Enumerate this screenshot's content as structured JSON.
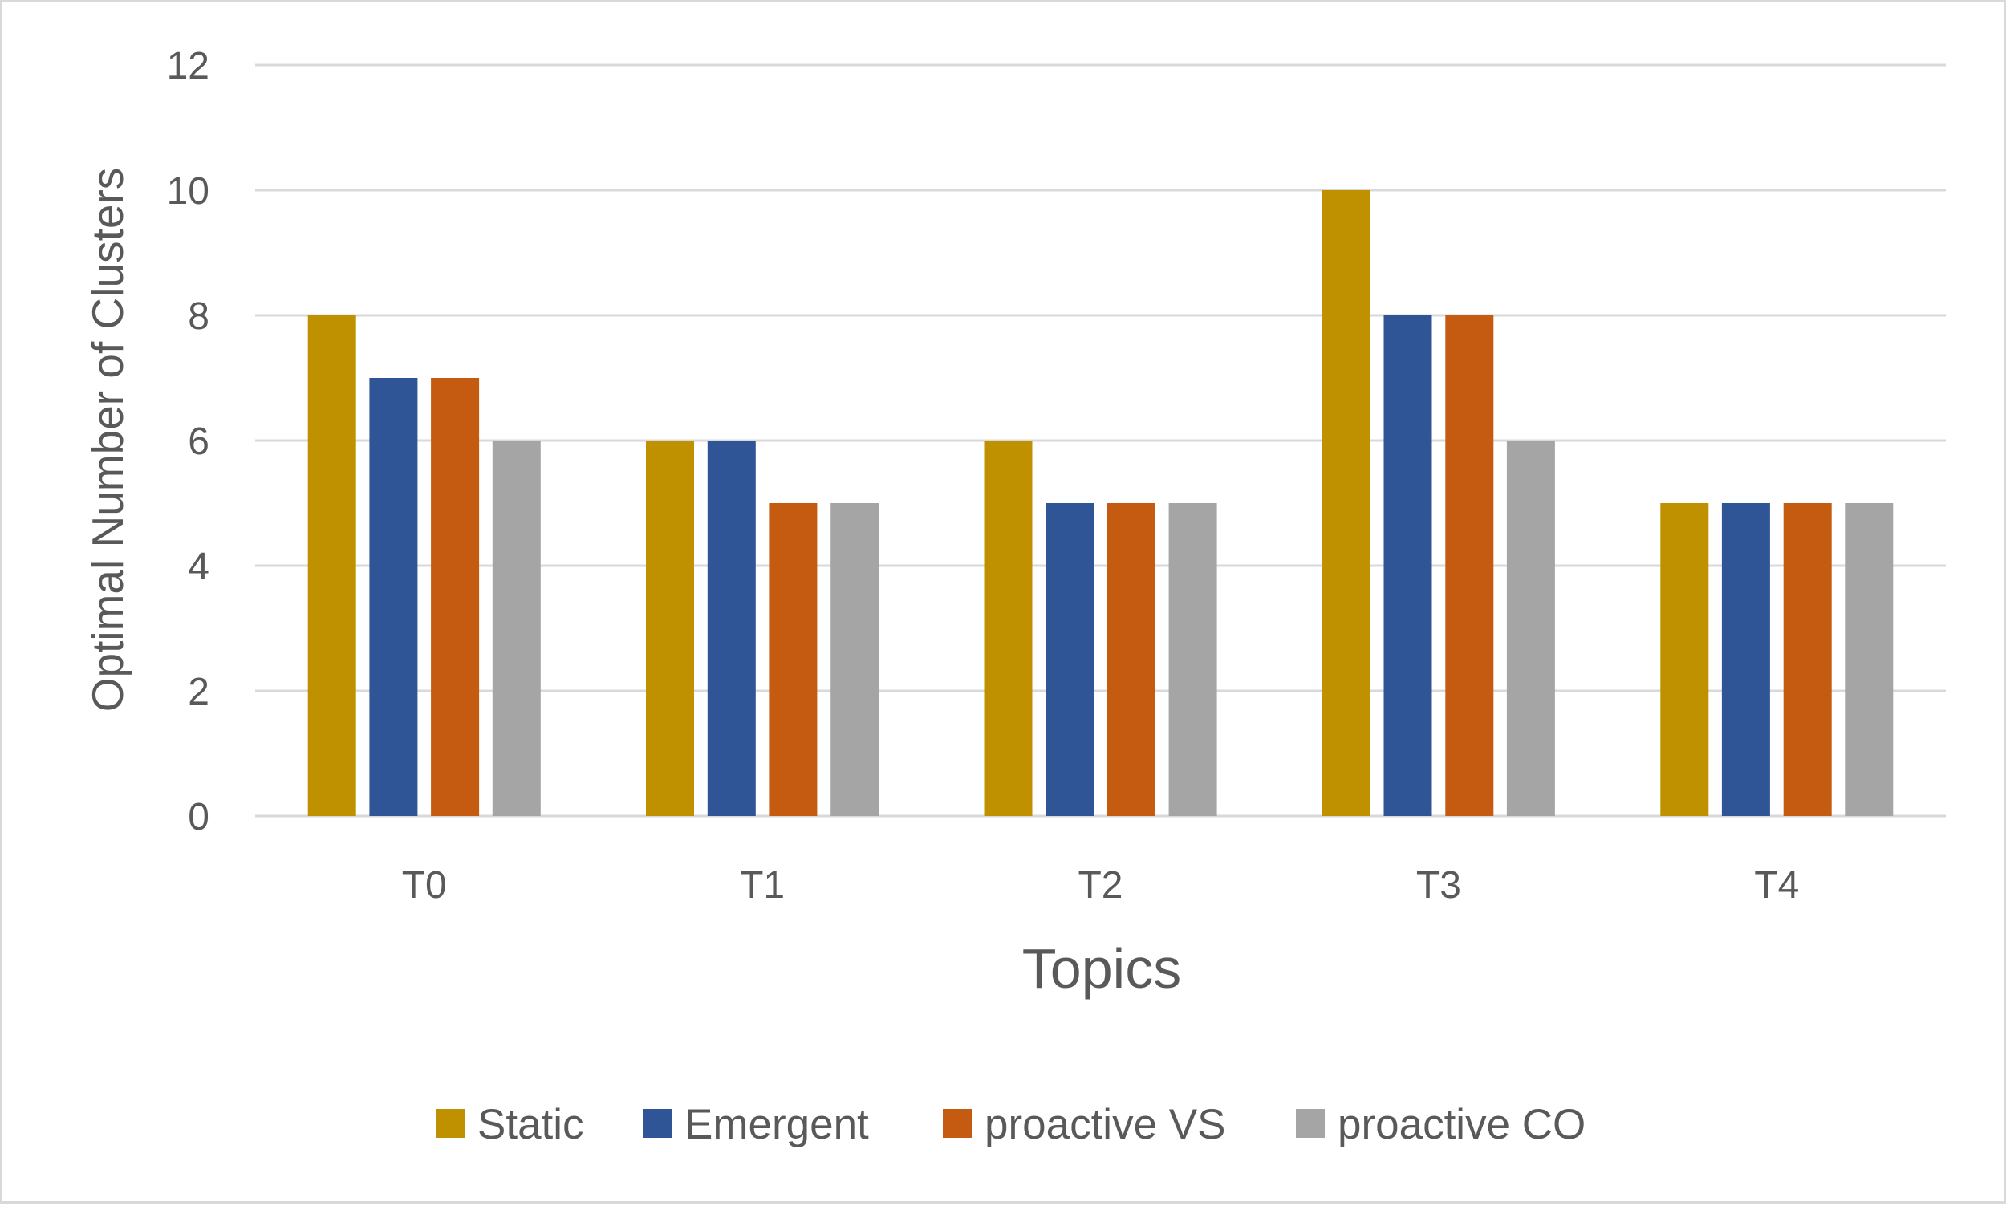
{
  "chart_data": {
    "type": "bar",
    "title": "",
    "xlabel": "Topics",
    "ylabel": "Optimal Number of Clusters",
    "categories": [
      "T0",
      "T1",
      "T2",
      "T3",
      "T4"
    ],
    "ylim": [
      0,
      12
    ],
    "yticks": [
      0,
      2,
      4,
      6,
      8,
      10,
      12
    ],
    "grid": true,
    "legend_position": "bottom",
    "series": [
      {
        "name": "Static",
        "color": "#bf9000",
        "values": [
          8,
          6,
          6,
          10,
          5
        ]
      },
      {
        "name": "Emergent",
        "color": "#2f5597",
        "values": [
          7,
          6,
          5,
          8,
          5
        ]
      },
      {
        "name": "proactive VS",
        "color": "#c55a11",
        "values": [
          7,
          5,
          5,
          8,
          5
        ]
      },
      {
        "name": "proactive CO",
        "color": "#a5a5a5",
        "values": [
          6,
          5,
          5,
          6,
          5
        ]
      }
    ]
  }
}
